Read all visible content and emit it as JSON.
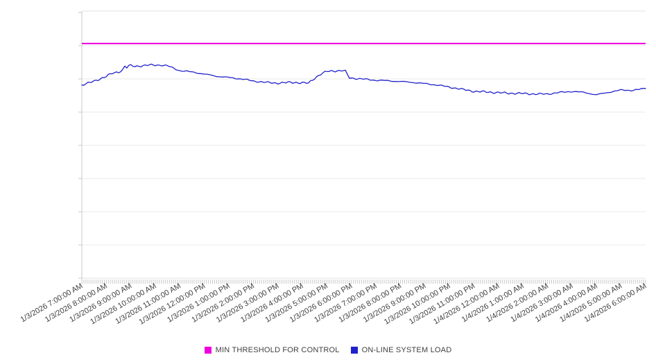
{
  "chart_data": {
    "type": "line",
    "title": "",
    "xlabel": "",
    "ylabel": "",
    "x_tick_labels": [
      "1/3/2026 7:00:00 AM",
      "1/3/2026 8:00:00 AM",
      "1/3/2026 9:00:00 AM",
      "1/3/2026 10:00:00 AM",
      "1/3/2026 11:00:00 AM",
      "1/3/2026 12:00:00 PM",
      "1/3/2026 1:00:00 PM",
      "1/3/2026 2:00:00 PM",
      "1/3/2026 3:00:00 PM",
      "1/3/2026 4:00:00 PM",
      "1/3/2026 5:00:00 PM",
      "1/3/2026 6:00:00 PM",
      "1/3/2026 7:00:00 PM",
      "1/3/2026 8:00:00 PM",
      "1/3/2026 9:00:00 PM",
      "1/3/2026 10:00:00 PM",
      "1/3/2026 11:00:00 PM",
      "1/4/2026 12:00:00 AM",
      "1/4/2026 1:00:00 AM",
      "1/4/2026 2:00:00 AM",
      "1/4/2026 3:00:00 AM",
      "1/4/2026 4:00:00 AM",
      "1/4/2026 5:00:00 AM",
      "1/4/2026 6:00:00 AM"
    ],
    "x_major_tick_interval_minutes": 60,
    "x_minor_tick_interval_minutes": 5,
    "ylim": [
      0,
      100
    ],
    "y_axis_labels_visible": false,
    "y_values_estimated_from_gridlines": true,
    "horizontal_gridline_step": 12.5,
    "grid": "horizontal",
    "legend_position": "bottom-center",
    "series": [
      {
        "name": "MIN THRESHOLD FOR CONTROL",
        "kind": "constant-threshold",
        "color": "#EE00DD",
        "value": 88.3
      },
      {
        "name": "ON-LINE SYSTEM LOAD",
        "kind": "line",
        "color": "#2121CC",
        "points_t_minutes_v": [
          [
            0,
            72.7
          ],
          [
            30,
            74.1
          ],
          [
            60,
            76.0
          ],
          [
            75,
            77.1
          ],
          [
            90,
            77.6
          ],
          [
            100,
            78.4
          ],
          [
            105,
            79.8
          ],
          [
            110,
            79.3
          ],
          [
            117,
            80.1
          ],
          [
            130,
            79.7
          ],
          [
            145,
            79.9
          ],
          [
            165,
            80.2
          ],
          [
            195,
            80.2
          ],
          [
            210,
            79.9
          ],
          [
            240,
            78.1
          ],
          [
            270,
            77.6
          ],
          [
            300,
            76.8
          ],
          [
            330,
            76.0
          ],
          [
            360,
            75.5
          ],
          [
            390,
            75.0
          ],
          [
            420,
            74.2
          ],
          [
            450,
            73.7
          ],
          [
            480,
            73.4
          ],
          [
            510,
            73.7
          ],
          [
            540,
            73.5
          ],
          [
            555,
            73.4
          ],
          [
            570,
            75.3
          ],
          [
            585,
            76.8
          ],
          [
            600,
            77.8
          ],
          [
            615,
            78.0
          ],
          [
            640,
            78.1
          ],
          [
            645,
            77.9
          ],
          [
            655,
            75.4
          ],
          [
            660,
            75.3
          ],
          [
            690,
            74.9
          ],
          [
            720,
            74.5
          ],
          [
            750,
            74.3
          ],
          [
            780,
            74.0
          ],
          [
            810,
            73.7
          ],
          [
            840,
            73.2
          ],
          [
            870,
            72.7
          ],
          [
            900,
            71.9
          ],
          [
            930,
            71.1
          ],
          [
            960,
            70.3
          ],
          [
            990,
            70.1
          ],
          [
            1020,
            69.8
          ],
          [
            1050,
            69.6
          ],
          [
            1080,
            69.5
          ],
          [
            1110,
            69.3
          ],
          [
            1140,
            69.3
          ],
          [
            1170,
            69.9
          ],
          [
            1200,
            70.3
          ],
          [
            1230,
            69.9
          ],
          [
            1260,
            69.0
          ],
          [
            1290,
            70.0
          ],
          [
            1320,
            70.8
          ],
          [
            1350,
            70.7
          ],
          [
            1380,
            71.4
          ]
        ]
      }
    ]
  },
  "legend": {
    "items": [
      {
        "label": "MIN THRESHOLD FOR CONTROL",
        "color": "#EE00DD"
      },
      {
        "label": "ON-LINE SYSTEM LOAD",
        "color": "#2121CC"
      }
    ]
  },
  "colors": {
    "background": "#ffffff",
    "gridline": "#e9e9e9",
    "border": "#e0e0e0",
    "axis": "#c9c9c9",
    "tick": "#c9c9c9",
    "axis_label_text": "#404040"
  }
}
